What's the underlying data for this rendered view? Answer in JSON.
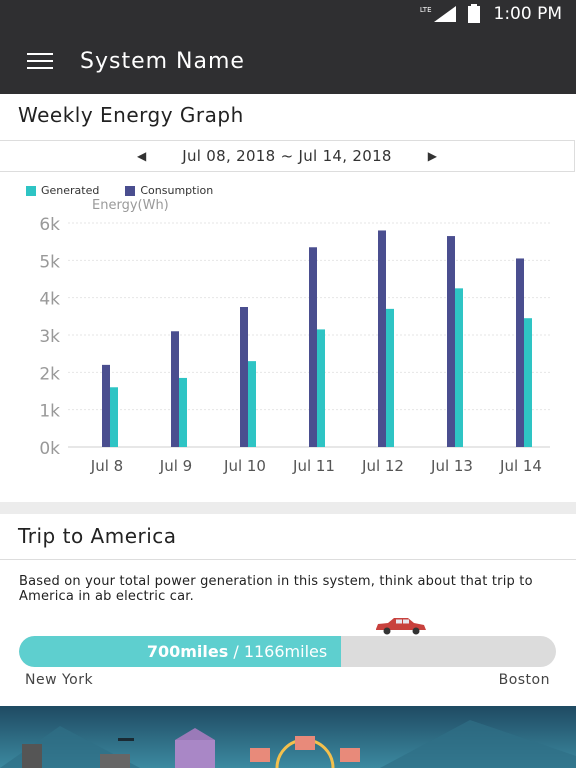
{
  "status_bar": {
    "network": "LTE",
    "time": "1:00 PM"
  },
  "app_bar": {
    "title": "System Name"
  },
  "energy_card": {
    "title": "Weekly Energy Graph",
    "date_range": "Jul 08, 2018 ~ Jul 14, 2018"
  },
  "chart_data": {
    "type": "bar",
    "ylabel": "Energy(Wh)",
    "ylim": [
      0,
      6000
    ],
    "yticks": [
      "0k",
      "1k",
      "2k",
      "3k",
      "4k",
      "5k",
      "6k"
    ],
    "categories": [
      "Jul 8",
      "Jul 9",
      "Jul 10",
      "Jul 11",
      "Jul 12",
      "Jul 13",
      "Jul 14"
    ],
    "series": [
      {
        "name": "Consumption",
        "color": "#4a4e8f",
        "values": [
          2200,
          3100,
          3750,
          5350,
          5800,
          5650,
          5050
        ]
      },
      {
        "name": "Generated",
        "color": "#2ec4c4",
        "values": [
          1600,
          1850,
          2300,
          3150,
          3700,
          4250,
          3450
        ]
      }
    ],
    "legend_position": "top-left",
    "grid": true
  },
  "trip_card": {
    "title": "Trip to America",
    "description": "Based on your total power generation in this system, think about that trip to America in ab electric car.",
    "progress_current": "700miles",
    "progress_separator": " / ",
    "progress_total": "1166miles",
    "progress_fraction": 0.6,
    "origin": "New York",
    "destination": "Boston"
  },
  "colors": {
    "bar_bg": "#2f2f31",
    "accent": "#5ecfcf"
  }
}
